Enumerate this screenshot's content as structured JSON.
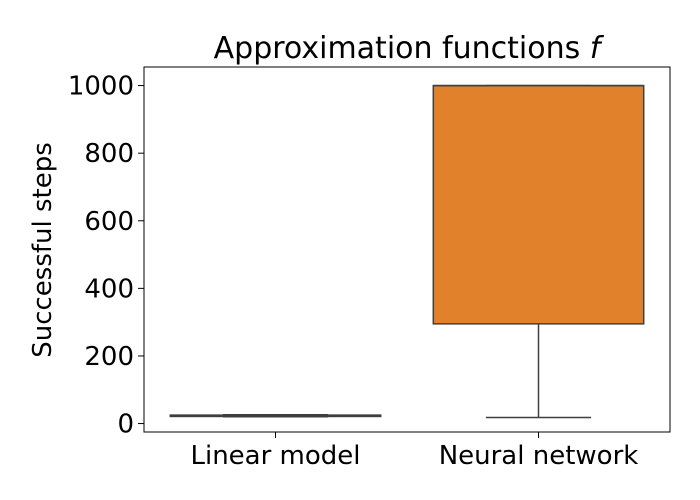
{
  "chart_data": {
    "type": "box",
    "title": "Approximation functions",
    "title_symbol": "f",
    "xlabel": "",
    "ylabel": "Successful steps",
    "ylim": [
      -25,
      1055
    ],
    "yticks": [
      0,
      200,
      400,
      600,
      800,
      1000
    ],
    "grid": false,
    "categories": [
      "Linear model",
      "Neural network"
    ],
    "boxes": [
      {
        "category": "Linear model",
        "whisker_low": 20,
        "q1": 21,
        "median": 22,
        "q3": 25,
        "whisker_high": 26,
        "color": "#3274a1"
      },
      {
        "category": "Neural network",
        "whisker_low": 18,
        "q1": 295,
        "median": 1000,
        "q3": 1000,
        "whisker_high": 1000,
        "color": "#e1812c"
      }
    ]
  }
}
